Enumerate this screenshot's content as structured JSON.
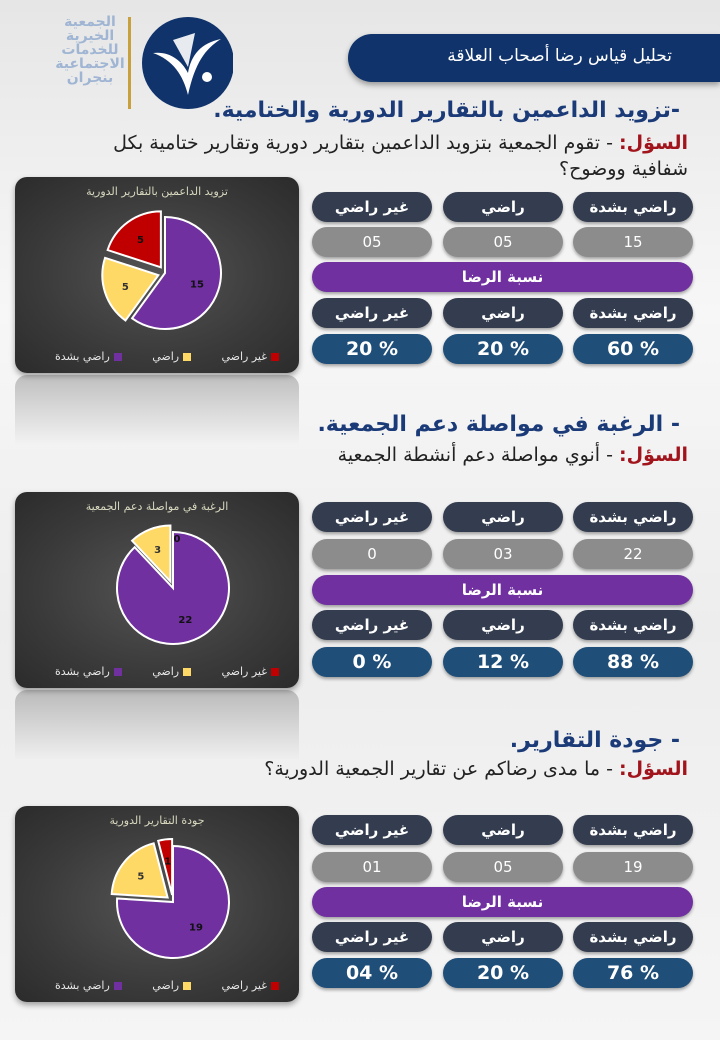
{
  "logo": {
    "lines": [
      "الجمعية",
      "الخيرية",
      "للخدمات",
      "الاجتماعية",
      "بنجران"
    ]
  },
  "header": {
    "title": "تحليل قياس رضا أصحاب العلاقة"
  },
  "colors": {
    "purple": "#7030a0",
    "yellow": "#ffd966",
    "red": "#c00000",
    "navy": "#10336b"
  },
  "sections": [
    {
      "heading": "-تزويد الداعمين بالتقارير الدورية والختامية.",
      "question_label": "السؤل:",
      "question_text": "- تقوم الجمعية بتزويد الداعمين بتقارير دورية وتقارير ختامية بكل شفافية ووضوح؟",
      "labels": [
        "راضي بشدة",
        "راضي",
        "غير راضي"
      ],
      "counts": [
        "15",
        "05",
        "05"
      ],
      "ratio_label": "نسبة الرضا",
      "percents": [
        "% 60",
        "% 20",
        "% 20"
      ]
    },
    {
      "heading": "- الرغبة في مواصلة دعم الجمعية.",
      "question_label": "السؤل:",
      "question_text": "- أنوي مواصلة دعم أنشطة الجمعية",
      "labels": [
        "راضي بشدة",
        "راضي",
        "غير راضي"
      ],
      "counts": [
        "22",
        "03",
        "0"
      ],
      "ratio_label": "نسبة الرضا",
      "percents": [
        "% 88",
        "% 12",
        "% 0"
      ]
    },
    {
      "heading": "- جودة التقارير.",
      "question_label": "السؤل:",
      "question_text": "- ما مدى رضاكم عن تقارير الجمعية الدورية؟",
      "labels": [
        "راضي بشدة",
        "راضي",
        "غير راضي"
      ],
      "counts": [
        "19",
        "05",
        "01"
      ],
      "ratio_label": "نسبة الرضا",
      "percents": [
        "% 76",
        "% 20",
        "% 04"
      ]
    }
  ],
  "chart_data": [
    {
      "type": "pie",
      "title": "تزويد الداعمين بالتقارير الدورية",
      "categories": [
        "راضي بشدة",
        "راضي",
        "غير راضي"
      ],
      "values": [
        15,
        5,
        5
      ],
      "colors": [
        "#7030a0",
        "#ffd966",
        "#c00000"
      ],
      "legend": "bottom"
    },
    {
      "type": "pie",
      "title": "الرغبة في مواصلة دعم الجمعية",
      "categories": [
        "راضي بشدة",
        "راضي",
        "غير راضي"
      ],
      "values": [
        22,
        3,
        0
      ],
      "colors": [
        "#7030a0",
        "#ffd966",
        "#c00000"
      ],
      "legend": "bottom"
    },
    {
      "type": "pie",
      "title": "جودة التقارير الدورية",
      "categories": [
        "راضي بشدة",
        "راضي",
        "غير راضي"
      ],
      "values": [
        19,
        5,
        1
      ],
      "colors": [
        "#7030a0",
        "#ffd966",
        "#c00000"
      ],
      "legend": "bottom"
    }
  ]
}
